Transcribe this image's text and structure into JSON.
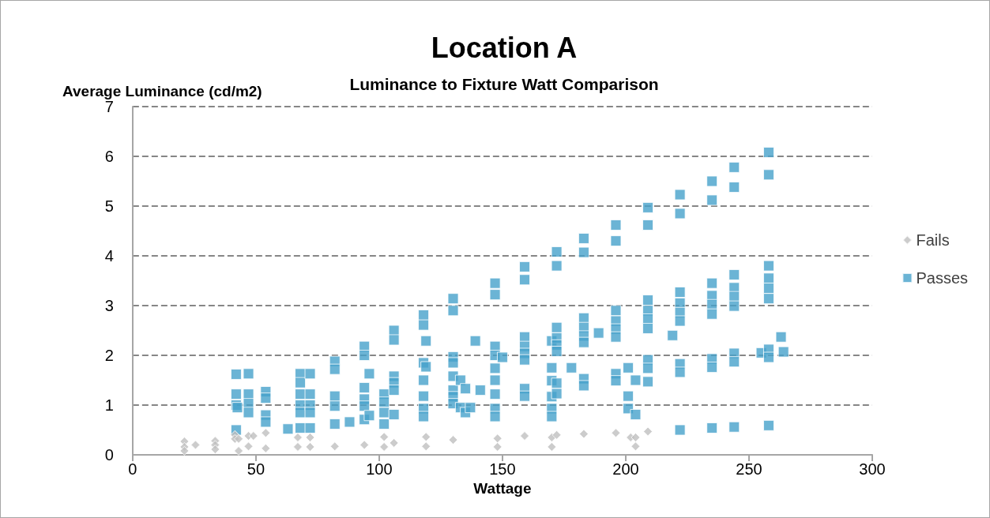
{
  "chart_data": {
    "type": "scatter",
    "title": "Location A",
    "subtitle": "Luminance to Fixture Watt Comparison",
    "xlabel": "Wattage",
    "ylabel": "Average Luminance (cd/m2)",
    "xlim": [
      0,
      300
    ],
    "xticks": [
      0,
      50,
      100,
      150,
      200,
      250,
      300
    ],
    "ylim": [
      0,
      7
    ],
    "yticks": [
      0,
      1,
      2,
      3,
      4,
      5,
      6,
      7
    ],
    "grid": "y",
    "legend": "right",
    "line_style": "dashed",
    "series": [
      {
        "name": "Fails",
        "color": "#bfbfbf",
        "marker": "diamond",
        "x": [
          21,
          21,
          21,
          25.5,
          33.5,
          33.5,
          33.5,
          41.5,
          41.5,
          43,
          43,
          47,
          47,
          49,
          54,
          54,
          67,
          67,
          72,
          72,
          82,
          94,
          102,
          102,
          106,
          119,
          119,
          130,
          148,
          148,
          159,
          170,
          170,
          172,
          183,
          196,
          202,
          204,
          204,
          209
        ],
        "values": [
          0.27,
          0.16,
          0.08,
          0.2,
          0.28,
          0.2,
          0.11,
          0.4,
          0.32,
          0.08,
          0.32,
          0.38,
          0.17,
          0.38,
          0.44,
          0.13,
          0.35,
          0.16,
          0.35,
          0.16,
          0.17,
          0.2,
          0.36,
          0.16,
          0.24,
          0.36,
          0.17,
          0.3,
          0.33,
          0.16,
          0.38,
          0.35,
          0.16,
          0.4,
          0.42,
          0.44,
          0.35,
          0.35,
          0.17,
          0.47
        ]
      },
      {
        "name": "Passes",
        "color": "#46a1cb",
        "marker": "square",
        "x": [
          42,
          42,
          42,
          42.5,
          42,
          47,
          47,
          47,
          47,
          54,
          54,
          54,
          54,
          63,
          68,
          68,
          68,
          68,
          68,
          68,
          72,
          72,
          72,
          72,
          72,
          82,
          82,
          82,
          82,
          82,
          88,
          94,
          94,
          94,
          94,
          94,
          94,
          96,
          96,
          102,
          102,
          102,
          102,
          106,
          106,
          106,
          106,
          106,
          106,
          118,
          118,
          118,
          118,
          118,
          118,
          118,
          119,
          119,
          130,
          130,
          130,
          130,
          130,
          130,
          130,
          130,
          133,
          133,
          135,
          135,
          137,
          139,
          141,
          147,
          147,
          147,
          147,
          147,
          147,
          147,
          147,
          147,
          150,
          159,
          159,
          159,
          159,
          159,
          159,
          159,
          159,
          170,
          170,
          170,
          170,
          170,
          170,
          172,
          172,
          172,
          172,
          172,
          172,
          172,
          172,
          178,
          183,
          183,
          183,
          183,
          183,
          183,
          183,
          183,
          189,
          196,
          196,
          196,
          196,
          196,
          196,
          196,
          196,
          201,
          201,
          201,
          204,
          204,
          209,
          209,
          209,
          209,
          209,
          209,
          209,
          209,
          209,
          219,
          222,
          222,
          222,
          222,
          222,
          222,
          222,
          222,
          222,
          235,
          235,
          235,
          235,
          235,
          235,
          235,
          235,
          235,
          244,
          244,
          244,
          244,
          244,
          244,
          244,
          244,
          244,
          255,
          258,
          258,
          258,
          258,
          258,
          258,
          258,
          258,
          258,
          263,
          264
        ],
        "values": [
          1.62,
          1.22,
          1.0,
          0.95,
          0.5,
          1.63,
          1.22,
          1.03,
          0.85,
          1.27,
          1.14,
          0.8,
          0.66,
          0.52,
          1.63,
          1.45,
          1.22,
          1.0,
          0.85,
          0.54,
          1.63,
          1.22,
          1.0,
          0.85,
          0.54,
          1.88,
          1.72,
          1.18,
          0.98,
          0.62,
          0.66,
          2.18,
          2.0,
          1.35,
          1.12,
          0.98,
          0.71,
          1.63,
          0.79,
          1.22,
          1.06,
          0.85,
          0.62,
          2.5,
          2.31,
          1.58,
          1.45,
          1.3,
          0.81,
          2.81,
          2.61,
          1.85,
          1.5,
          1.18,
          0.93,
          0.77,
          2.29,
          1.77,
          3.14,
          2.9,
          1.97,
          1.85,
          1.58,
          1.3,
          1.17,
          1.03,
          1.5,
          0.95,
          1.33,
          0.85,
          0.95,
          2.29,
          1.3,
          3.45,
          3.22,
          2.18,
          2.0,
          1.74,
          1.5,
          1.22,
          0.93,
          0.77,
          1.96,
          3.78,
          3.52,
          2.37,
          2.18,
          2.04,
          1.91,
          1.33,
          1.18,
          2.29,
          1.75,
          1.49,
          1.17,
          0.93,
          0.77,
          4.08,
          3.8,
          2.56,
          2.35,
          2.21,
          2.08,
          1.44,
          1.23,
          1.75,
          4.35,
          4.07,
          2.75,
          2.56,
          2.39,
          2.26,
          1.53,
          1.39,
          2.45,
          4.62,
          4.3,
          2.9,
          2.69,
          2.53,
          2.37,
          1.63,
          1.49,
          1.75,
          1.18,
          0.93,
          1.5,
          0.81,
          4.97,
          4.62,
          3.11,
          2.9,
          2.73,
          2.54,
          1.91,
          1.74,
          1.47,
          2.4,
          5.23,
          4.85,
          3.27,
          3.05,
          2.86,
          2.69,
          1.83,
          1.66,
          0.5,
          5.5,
          5.12,
          3.45,
          3.2,
          3.02,
          2.83,
          1.93,
          1.76,
          0.54,
          5.78,
          5.38,
          3.62,
          3.36,
          3.18,
          2.99,
          2.04,
          1.87,
          0.56,
          2.05,
          6.08,
          5.63,
          3.8,
          3.55,
          3.35,
          3.14,
          2.12,
          1.96,
          0.59,
          2.37,
          2.07
        ]
      }
    ]
  }
}
